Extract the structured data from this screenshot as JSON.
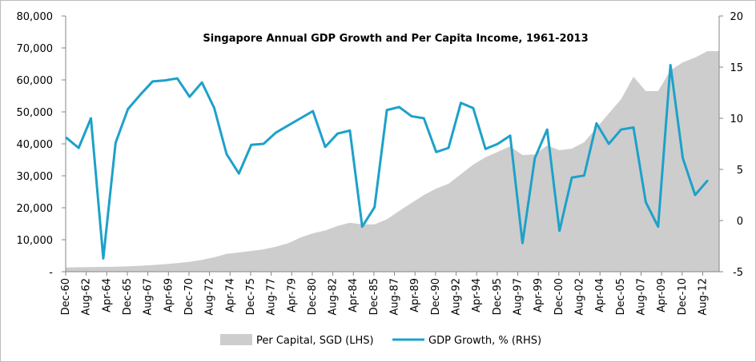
{
  "chart_data": {
    "type": "area+line",
    "title": "Singapore Annual GDP Growth and Per Capita Income, 1961-2013",
    "x_labels": [
      "Dec-60",
      "Aug-62",
      "Apr-64",
      "Dec-65",
      "Aug-67",
      "Apr-69",
      "Dec-70",
      "Aug-72",
      "Apr-74",
      "Dec-75",
      "Aug-77",
      "Apr-79",
      "Dec-80",
      "Aug-82",
      "Apr-84",
      "Dec-85",
      "Aug-87",
      "Apr-89",
      "Dec-90",
      "Aug-92",
      "Apr-94",
      "Dec-95",
      "Aug-97",
      "Apr-99",
      "Dec-00",
      "Aug-02",
      "Apr-04",
      "Dec-05",
      "Aug-07",
      "Apr-09",
      "Dec-10",
      "Aug-12"
    ],
    "years": [
      1961,
      1962,
      1963,
      1964,
      1965,
      1966,
      1967,
      1968,
      1969,
      1970,
      1971,
      1972,
      1973,
      1974,
      1975,
      1976,
      1977,
      1978,
      1979,
      1980,
      1981,
      1982,
      1983,
      1984,
      1985,
      1986,
      1987,
      1988,
      1989,
      1990,
      1991,
      1992,
      1993,
      1994,
      1995,
      1996,
      1997,
      1998,
      1999,
      2000,
      2001,
      2002,
      2003,
      2004,
      2005,
      2006,
      2007,
      2008,
      2009,
      2010,
      2011,
      2012,
      2013
    ],
    "left_axis": {
      "min": 0,
      "max": 80000,
      "ticks": [
        "-",
        "10,000",
        "20,000",
        "30,000",
        "40,000",
        "50,000",
        "60,000",
        "70,000",
        "80,000"
      ]
    },
    "right_axis": {
      "min": -5,
      "max": 20,
      "ticks": [
        "-5",
        "0",
        "5",
        "10",
        "15",
        "20"
      ]
    },
    "series": [
      {
        "name": "Per Capital, SGD (LHS)",
        "type": "area",
        "axis": "left",
        "color": "#cdcdcd",
        "values": [
          1300,
          1400,
          1450,
          1500,
          1550,
          1700,
          1850,
          2100,
          2350,
          2700,
          3100,
          3700,
          4500,
          5600,
          6000,
          6500,
          7000,
          7800,
          8900,
          10700,
          12000,
          12900,
          14300,
          15300,
          14800,
          14800,
          16400,
          19000,
          21500,
          24000,
          26000,
          27500,
          30500,
          33500,
          35800,
          37500,
          39200,
          36500,
          36700,
          39500,
          38000,
          38500,
          40500,
          45000,
          49500,
          54000,
          61000,
          56500,
          56500,
          63000,
          65500,
          67000,
          69000
        ]
      },
      {
        "name": "GDP Growth, % (RHS)",
        "type": "line",
        "axis": "right",
        "color": "#1da1c9",
        "values": [
          8.1,
          7.1,
          10.0,
          -3.7,
          7.6,
          10.9,
          12.3,
          13.6,
          13.7,
          13.9,
          12.1,
          13.5,
          11.0,
          6.5,
          4.6,
          7.4,
          7.5,
          8.6,
          9.3,
          10.0,
          10.7,
          7.2,
          8.5,
          8.8,
          -0.6,
          1.3,
          10.8,
          11.1,
          10.2,
          10.0,
          6.7,
          7.1,
          11.5,
          11.0,
          7.0,
          7.5,
          8.3,
          -2.2,
          6.1,
          8.9,
          -1.0,
          4.2,
          4.4,
          9.5,
          7.5,
          8.9,
          9.1,
          1.8,
          -0.6,
          15.2,
          6.1,
          2.5,
          3.9
        ]
      }
    ],
    "legend": "bottom",
    "grid": false
  }
}
